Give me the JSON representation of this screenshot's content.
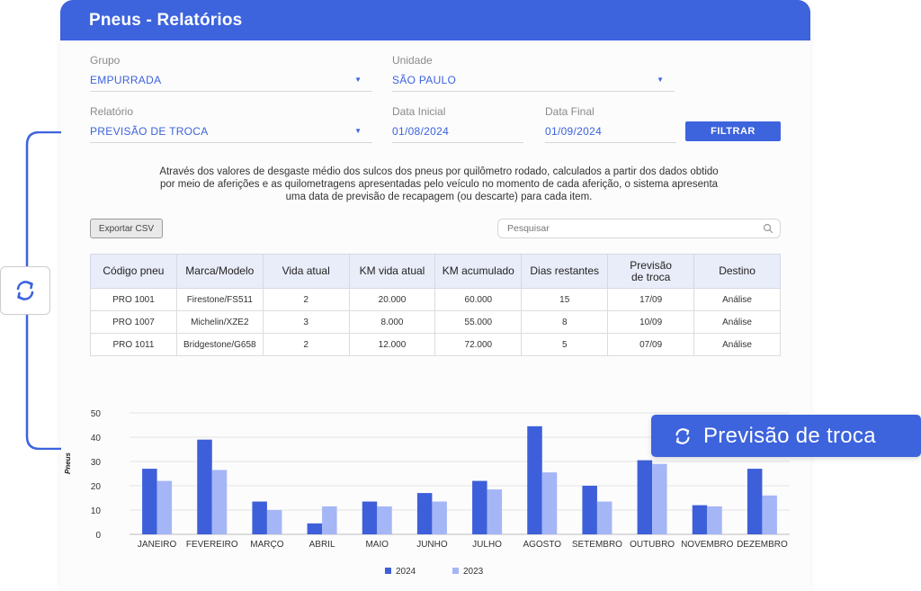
{
  "header": {
    "title": "Pneus - Relatórios"
  },
  "filters": {
    "grupo": {
      "label": "Grupo",
      "value": "EMPURRADA"
    },
    "unidade": {
      "label": "Unidade",
      "value": "SÃO PAULO"
    },
    "relatorio": {
      "label": "Relatório",
      "value": "PREVISÃO DE TROCA"
    },
    "data_inicial": {
      "label": "Data Inicial",
      "value": "01/08/2024"
    },
    "data_final": {
      "label": "Data Final",
      "value": "01/09/2024"
    },
    "filter_button": "FILTRAR"
  },
  "description": "Através dos valores de desgaste médio dos sulcos dos pneus por quilômetro rodado, calculados a partir dos dados obtido por meio de aferições e as quilometragens apresentadas pelo veículo no momento de cada aferição, o sistema apresenta uma data de previsão de recapagem (ou descarte) para cada item.",
  "toolbar": {
    "export_label": "Exportar CSV",
    "search_placeholder": "Pesquisar"
  },
  "table": {
    "headers": [
      "Código pneu",
      "Marca/Modelo",
      "Vida atual",
      "KM vida atual",
      "KM acumulado",
      "Dias restantes",
      "Previsão de troca",
      "Destino"
    ],
    "rows": [
      [
        "PRO 1001",
        "Firestone/FS511",
        "2",
        "20.000",
        "60.000",
        "15",
        "17/09",
        "Análise"
      ],
      [
        "PRO 1007",
        "Michelin/XZE2",
        "3",
        "8.000",
        "55.000",
        "8",
        "10/09",
        "Análise"
      ],
      [
        "PRO 1011",
        "Bridgestone/G658",
        "2",
        "12.000",
        "72.000",
        "5",
        "07/09",
        "Análise"
      ]
    ]
  },
  "badge": {
    "label": "Previsão de troca",
    "icon": "sync-icon"
  },
  "side_icon": "sync-icon",
  "colors": {
    "primary": "#3d63dd",
    "series_2024": "#3d5fd9",
    "series_2023": "#a5b6f6",
    "header_bg": "#3d63dd"
  },
  "chart_data": {
    "type": "bar",
    "categories": [
      "JANEIRO",
      "FEVEREIRO",
      "MARÇO",
      "ABRIL",
      "MAIO",
      "JUNHO",
      "JULHO",
      "AGOSTO",
      "SETEMBRO",
      "OUTUBRO",
      "NOVEMBRO",
      "DEZEMBRO"
    ],
    "series": [
      {
        "name": "2024",
        "values": [
          27,
          39,
          13.5,
          4.5,
          13.5,
          17,
          22,
          44.5,
          20,
          30.5,
          12,
          27
        ]
      },
      {
        "name": "2023",
        "values": [
          22,
          26.5,
          10,
          11.5,
          11.5,
          13.5,
          18.5,
          25.5,
          13.5,
          29,
          11.5,
          16
        ]
      }
    ],
    "ylabel": "Pneus",
    "xlabel": "",
    "ylim": [
      0,
      50
    ],
    "yticks": [
      0,
      10,
      20,
      30,
      40,
      50
    ],
    "grid": true,
    "legend": "bottom-center"
  }
}
